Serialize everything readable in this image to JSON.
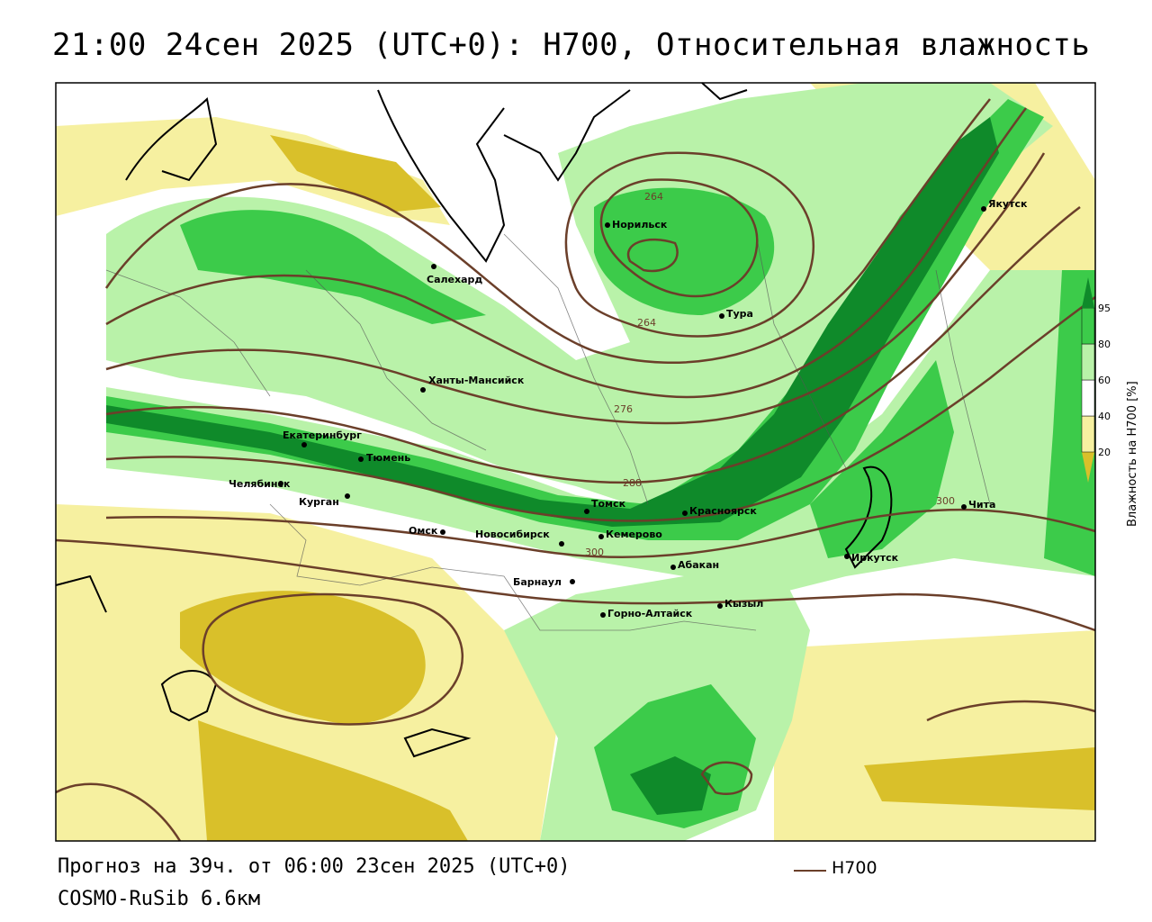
{
  "title": "21:00 24сен 2025 (UTC+0): H700, Относительная влажность",
  "footer": {
    "forecast": "Прогноз на 39ч. от 06:00 23сен 2025 (UTC+0)",
    "model": "COSMO-RuSib 6.6км"
  },
  "legend": {
    "line_label": "H700",
    "line_color": "#6b3f2a"
  },
  "colorbar": {
    "title": "Влажность на H700 [%]",
    "ticks": [
      "20",
      "40",
      "60",
      "80",
      "95"
    ],
    "colors": [
      "#d9c02a",
      "#f6f0a0",
      "#ffffff",
      "#b9f2a9",
      "#3ccb4a",
      "#0f8a2a"
    ]
  },
  "colors": {
    "dry": "#d9c02a",
    "dry_light": "#f6f0a0",
    "moist_light": "#b9f2a9",
    "moist": "#3ccb4a",
    "moist_dark": "#0f8a2a",
    "contour": "#6b3f2a"
  },
  "cities": [
    {
      "name": "Норильск"
    },
    {
      "name": "Якутск"
    },
    {
      "name": "Салехард"
    },
    {
      "name": "Тура"
    },
    {
      "name": "Ханты-Мансийск"
    },
    {
      "name": "Екатеринбург"
    },
    {
      "name": "Тюмень"
    },
    {
      "name": "Челябинск"
    },
    {
      "name": "Курган"
    },
    {
      "name": "Омск"
    },
    {
      "name": "Новосибирск"
    },
    {
      "name": "Томск"
    },
    {
      "name": "Кемерово"
    },
    {
      "name": "Красноярск"
    },
    {
      "name": "Абакан"
    },
    {
      "name": "Иркутск"
    },
    {
      "name": "Чита"
    },
    {
      "name": "Барнаул"
    },
    {
      "name": "Горно-Алтайск"
    },
    {
      "name": "Кызыл"
    }
  ],
  "contour_labels": [
    "264",
    "264",
    "276",
    "288",
    "300",
    "300"
  ]
}
